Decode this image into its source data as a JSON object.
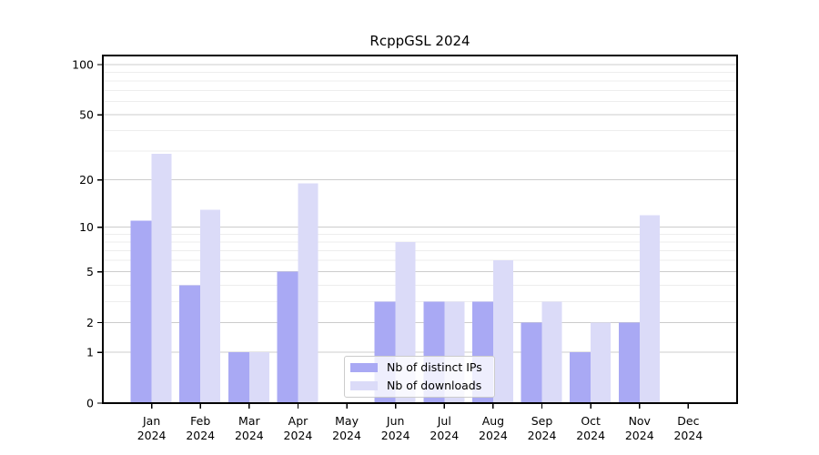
{
  "chart_data": {
    "type": "bar",
    "title": "RcppGSL 2024",
    "categories": [
      "Jan",
      "Feb",
      "Mar",
      "Apr",
      "May",
      "Jun",
      "Jul",
      "Aug",
      "Sep",
      "Oct",
      "Nov",
      "Dec"
    ],
    "year_label": "2024",
    "series": [
      {
        "name": "Nb of distinct IPs",
        "color": "#a9a9f4",
        "values": [
          11,
          4,
          1,
          5,
          0,
          3,
          3,
          3,
          2,
          1,
          2,
          0
        ]
      },
      {
        "name": "Nb of downloads",
        "color": "#dbdbf8",
        "values": [
          29,
          13,
          1,
          19,
          0,
          8,
          3,
          6,
          3,
          2,
          12,
          0
        ]
      }
    ],
    "y_scale": "log1p",
    "y_ticks": [
      0,
      1,
      2,
      5,
      10,
      20,
      50,
      100
    ],
    "y_minor_ticks": [
      3,
      4,
      6,
      7,
      8,
      9,
      30,
      40,
      60,
      70,
      80,
      90
    ],
    "ylim": [
      0,
      113
    ],
    "xlabel": "",
    "ylabel": "",
    "grid": true,
    "legend_position": "lower center",
    "colors": {
      "axis": "#000000",
      "major_grid": "#cccccc",
      "minor_grid": "#ededed",
      "tick_label": "#000000"
    }
  },
  "legend": {
    "items": [
      {
        "label": "Nb of distinct IPs",
        "color": "#a9a9f4"
      },
      {
        "label": "Nb of downloads",
        "color": "#dbdbf8"
      }
    ]
  }
}
